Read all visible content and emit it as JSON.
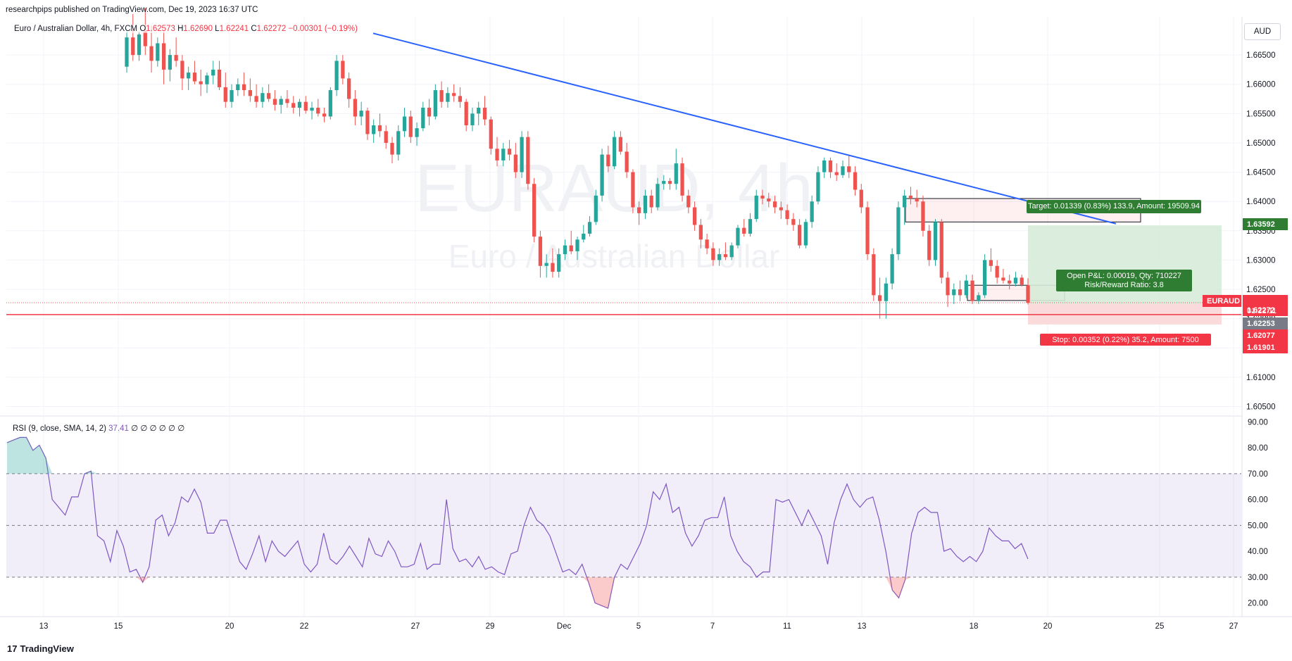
{
  "header": {
    "published_by": "researchpips published on TradingView.com, Dec 19, 2023 16:37 UTC"
  },
  "symbol_legend": {
    "name": "Euro / Australian Dollar, 4h, FXCM",
    "open_label": "O",
    "open": "1.62573",
    "high_label": "H",
    "high": "1.62690",
    "low_label": "L",
    "low": "1.62241",
    "close_label": "C",
    "close": "1.62272",
    "change": "−0.00301 (−0.19%)"
  },
  "currency_button": "AUD",
  "watermark": {
    "ticker": "EURAUD, 4h",
    "description": "Euro / Australian Dollar"
  },
  "rsi_legend": {
    "name": "RSI (9, close, SMA, 14, 2)",
    "value": "37.41",
    "extras": "∅ ∅ ∅ ∅ ∅ ∅"
  },
  "position": {
    "target_label": "Target: 0.01339 (0.83%) 133.9, Amount: 19509.94",
    "stop_label": "Stop: 0.00352 (0.22%) 35.2, Amount: 7500",
    "pnl_label": "Open P&L: 0.00019, Qty: 710227",
    "rr_label": "Risk/Reward Ratio: 3.8",
    "entry": 1.62253,
    "target": 1.63592,
    "stop": 1.61901
  },
  "price_labels": {
    "target": "1.63592",
    "current_symbol": "EURAUD",
    "current": "1.62272",
    "countdown": "01:22:11",
    "entry": "1.62253",
    "support": "1.62077",
    "stop": "1.61901"
  },
  "branding": {
    "logo_text": "TradingView",
    "logo_mark": "17"
  },
  "colors": {
    "up": "#26a69a",
    "down": "#ef5350",
    "trendline": "#2962ff",
    "support": "#f23645",
    "rsi": "#7e57c2",
    "target_fill": "#d7ebd8",
    "stop_fill": "#f9d6d6"
  },
  "chart_data": {
    "type": "candlestick",
    "price_axis": {
      "min": 1.6035,
      "max": 1.6715,
      "ticks": [
        1.665,
        1.66,
        1.655,
        1.65,
        1.645,
        1.64,
        1.635,
        1.63,
        1.625,
        1.62,
        1.615,
        1.61,
        1.605
      ]
    },
    "time_axis_labels": [
      "13",
      "15",
      "20",
      "22",
      "27",
      "29",
      "Dec",
      "5",
      "7",
      "11",
      "13",
      "18",
      "20",
      "25",
      "27"
    ],
    "support_level": 1.6207,
    "trendline": {
      "from": {
        "date": "Nov 15 00:00",
        "price": 1.6687
      },
      "to": {
        "date": "Dec 19 00:00",
        "price": 1.6362
      }
    },
    "highlight_zones": [
      {
        "from_date": "Dec 13",
        "to_date": "Dec 18",
        "high": 1.6405,
        "low": 1.6365
      },
      {
        "from_date": "Dec 18",
        "to_date": "Dec 20",
        "high": 1.6257,
        "low": 1.6231
      }
    ],
    "candles": [
      [
        1.663,
        1.669,
        1.662,
        1.668
      ],
      [
        1.668,
        1.672,
        1.664,
        1.665
      ],
      [
        1.665,
        1.669,
        1.664,
        1.6685
      ],
      [
        1.669,
        1.673,
        1.665,
        1.6665
      ],
      [
        1.6665,
        1.67,
        1.662,
        1.664
      ],
      [
        1.664,
        1.668,
        1.663,
        1.667
      ],
      [
        1.667,
        1.669,
        1.66,
        1.6625
      ],
      [
        1.6625,
        1.666,
        1.6605,
        1.665
      ],
      [
        1.665,
        1.668,
        1.663,
        1.664
      ],
      [
        1.664,
        1.665,
        1.659,
        1.661
      ],
      [
        1.661,
        1.663,
        1.659,
        1.662
      ],
      [
        1.662,
        1.664,
        1.66,
        1.6605
      ],
      [
        1.6605,
        1.6625,
        1.658,
        1.66
      ],
      [
        1.66,
        1.662,
        1.6585,
        1.6615
      ],
      [
        1.6615,
        1.664,
        1.66,
        1.6625
      ],
      [
        1.6625,
        1.664,
        1.659,
        1.6595
      ],
      [
        1.6595,
        1.662,
        1.656,
        1.657
      ],
      [
        1.657,
        1.66,
        1.656,
        1.659
      ],
      [
        1.659,
        1.661,
        1.658,
        1.66
      ],
      [
        1.66,
        1.662,
        1.658,
        1.659
      ],
      [
        1.659,
        1.661,
        1.657,
        1.658
      ],
      [
        1.658,
        1.66,
        1.656,
        1.657
      ],
      [
        1.657,
        1.6595,
        1.656,
        1.6585
      ],
      [
        1.6585,
        1.66,
        1.657,
        1.6575
      ],
      [
        1.6575,
        1.659,
        1.6555,
        1.6565
      ],
      [
        1.6565,
        1.658,
        1.655,
        1.6575
      ],
      [
        1.6575,
        1.659,
        1.656,
        1.6568
      ],
      [
        1.6568,
        1.658,
        1.655,
        1.656
      ],
      [
        1.656,
        1.6575,
        1.6545,
        1.657
      ],
      [
        1.657,
        1.658,
        1.655,
        1.6555
      ],
      [
        1.6555,
        1.657,
        1.654,
        1.656
      ],
      [
        1.656,
        1.6575,
        1.6545,
        1.655
      ],
      [
        1.655,
        1.656,
        1.6535,
        1.6545
      ],
      [
        1.6545,
        1.6595,
        1.654,
        1.659
      ],
      [
        1.659,
        1.665,
        1.658,
        1.664
      ],
      [
        1.664,
        1.665,
        1.66,
        1.661
      ],
      [
        1.661,
        1.662,
        1.656,
        1.6575
      ],
      [
        1.6575,
        1.659,
        1.653,
        1.6545
      ],
      [
        1.6545,
        1.657,
        1.653,
        1.6555
      ],
      [
        1.6555,
        1.656,
        1.6505,
        1.6515
      ],
      [
        1.6515,
        1.654,
        1.65,
        1.653
      ],
      [
        1.653,
        1.655,
        1.651,
        1.652
      ],
      [
        1.652,
        1.653,
        1.649,
        1.65
      ],
      [
        1.65,
        1.651,
        1.6465,
        1.648
      ],
      [
        1.648,
        1.653,
        1.647,
        1.652
      ],
      [
        1.652,
        1.656,
        1.651,
        1.6545
      ],
      [
        1.6545,
        1.6555,
        1.65,
        1.651
      ],
      [
        1.651,
        1.6535,
        1.6495,
        1.6525
      ],
      [
        1.6525,
        1.657,
        1.652,
        1.656
      ],
      [
        1.656,
        1.6575,
        1.653,
        1.6545
      ],
      [
        1.6545,
        1.66,
        1.654,
        1.659
      ],
      [
        1.659,
        1.6605,
        1.656,
        1.657
      ],
      [
        1.657,
        1.6595,
        1.656,
        1.6585
      ],
      [
        1.6585,
        1.66,
        1.657,
        1.658
      ],
      [
        1.658,
        1.6595,
        1.656,
        1.657
      ],
      [
        1.657,
        1.6575,
        1.652,
        1.653
      ],
      [
        1.653,
        1.656,
        1.652,
        1.655
      ],
      [
        1.655,
        1.657,
        1.653,
        1.656
      ],
      [
        1.656,
        1.658,
        1.653,
        1.654
      ],
      [
        1.654,
        1.6545,
        1.648,
        1.649
      ],
      [
        1.649,
        1.651,
        1.646,
        1.647
      ],
      [
        1.647,
        1.65,
        1.646,
        1.649
      ],
      [
        1.649,
        1.6505,
        1.647,
        1.648
      ],
      [
        1.648,
        1.65,
        1.644,
        1.645
      ],
      [
        1.645,
        1.652,
        1.644,
        1.651
      ],
      [
        1.651,
        1.652,
        1.642,
        1.643
      ],
      [
        1.643,
        1.644,
        1.633,
        1.634
      ],
      [
        1.634,
        1.635,
        1.627,
        1.629
      ],
      [
        1.629,
        1.631,
        1.627,
        1.6295
      ],
      [
        1.6295,
        1.632,
        1.627,
        1.628
      ],
      [
        1.628,
        1.632,
        1.627,
        1.631
      ],
      [
        1.631,
        1.6335,
        1.63,
        1.6325
      ],
      [
        1.6325,
        1.635,
        1.631,
        1.6315
      ],
      [
        1.6315,
        1.634,
        1.63,
        1.6335
      ],
      [
        1.6335,
        1.636,
        1.633,
        1.6345
      ],
      [
        1.6345,
        1.6375,
        1.634,
        1.6365
      ],
      [
        1.6365,
        1.642,
        1.636,
        1.641
      ],
      [
        1.641,
        1.649,
        1.64,
        1.648
      ],
      [
        1.648,
        1.6495,
        1.645,
        1.646
      ],
      [
        1.646,
        1.652,
        1.6455,
        1.651
      ],
      [
        1.651,
        1.652,
        1.648,
        1.6485
      ],
      [
        1.6485,
        1.65,
        1.644,
        1.645
      ],
      [
        1.645,
        1.6455,
        1.638,
        1.639
      ],
      [
        1.639,
        1.64,
        1.636,
        1.638
      ],
      [
        1.638,
        1.642,
        1.637,
        1.641
      ],
      [
        1.641,
        1.642,
        1.638,
        1.639
      ],
      [
        1.639,
        1.644,
        1.6385,
        1.643
      ],
      [
        1.643,
        1.6445,
        1.642,
        1.6435
      ],
      [
        1.6435,
        1.644,
        1.642,
        1.643
      ],
      [
        1.643,
        1.649,
        1.642,
        1.6465
      ],
      [
        1.6465,
        1.6475,
        1.64,
        1.641
      ],
      [
        1.641,
        1.642,
        1.638,
        1.639
      ],
      [
        1.639,
        1.64,
        1.635,
        1.636
      ],
      [
        1.636,
        1.637,
        1.632,
        1.6335
      ],
      [
        1.6335,
        1.6345,
        1.631,
        1.632
      ],
      [
        1.632,
        1.633,
        1.629,
        1.63
      ],
      [
        1.63,
        1.632,
        1.629,
        1.631
      ],
      [
        1.631,
        1.633,
        1.63,
        1.6305
      ],
      [
        1.6305,
        1.633,
        1.63,
        1.6325
      ],
      [
        1.6325,
        1.636,
        1.632,
        1.6355
      ],
      [
        1.6355,
        1.637,
        1.634,
        1.6345
      ],
      [
        1.6345,
        1.638,
        1.634,
        1.637
      ],
      [
        1.637,
        1.642,
        1.6365,
        1.641
      ],
      [
        1.641,
        1.642,
        1.6395,
        1.6405
      ],
      [
        1.6405,
        1.6415,
        1.639,
        1.64
      ],
      [
        1.64,
        1.641,
        1.638,
        1.639
      ],
      [
        1.639,
        1.64,
        1.637,
        1.6385
      ],
      [
        1.6385,
        1.6395,
        1.636,
        1.637
      ],
      [
        1.637,
        1.638,
        1.635,
        1.636
      ],
      [
        1.636,
        1.637,
        1.632,
        1.6325
      ],
      [
        1.6325,
        1.637,
        1.632,
        1.6365
      ],
      [
        1.6365,
        1.641,
        1.6355,
        1.64
      ],
      [
        1.64,
        1.646,
        1.6395,
        1.645
      ],
      [
        1.645,
        1.6475,
        1.644,
        1.647
      ],
      [
        1.647,
        1.6475,
        1.644,
        1.645
      ],
      [
        1.645,
        1.6465,
        1.6435,
        1.6445
      ],
      [
        1.6445,
        1.647,
        1.644,
        1.646
      ],
      [
        1.646,
        1.648,
        1.644,
        1.645
      ],
      [
        1.645,
        1.646,
        1.641,
        1.642
      ],
      [
        1.642,
        1.643,
        1.638,
        1.639
      ],
      [
        1.639,
        1.64,
        1.63,
        1.631
      ],
      [
        1.631,
        1.632,
        1.623,
        1.624
      ],
      [
        1.624,
        1.627,
        1.62,
        1.623
      ],
      [
        1.623,
        1.627,
        1.62,
        1.626
      ],
      [
        1.626,
        1.632,
        1.625,
        1.631
      ],
      [
        1.631,
        1.64,
        1.63,
        1.639
      ],
      [
        1.639,
        1.642,
        1.636,
        1.641
      ],
      [
        1.641,
        1.6425,
        1.6395,
        1.6405
      ],
      [
        1.6405,
        1.642,
        1.639,
        1.64
      ],
      [
        1.64,
        1.641,
        1.634,
        1.635
      ],
      [
        1.635,
        1.636,
        1.629,
        1.63
      ],
      [
        1.63,
        1.637,
        1.629,
        1.6365
      ],
      [
        1.6365,
        1.637,
        1.626,
        1.627
      ],
      [
        1.627,
        1.628,
        1.622,
        1.624
      ],
      [
        1.624,
        1.626,
        1.6225,
        1.625
      ],
      [
        1.625,
        1.6265,
        1.623,
        1.624
      ],
      [
        1.624,
        1.6275,
        1.6235,
        1.6265
      ],
      [
        1.6265,
        1.6275,
        1.6225,
        1.623
      ],
      [
        1.623,
        1.6245,
        1.6225,
        1.624
      ],
      [
        1.624,
        1.631,
        1.6235,
        1.63
      ],
      [
        1.63,
        1.632,
        1.628,
        1.629
      ],
      [
        1.629,
        1.63,
        1.626,
        1.627
      ],
      [
        1.627,
        1.6285,
        1.626,
        1.6265
      ],
      [
        1.6265,
        1.6275,
        1.625,
        1.626
      ],
      [
        1.626,
        1.628,
        1.6255,
        1.627
      ],
      [
        1.627,
        1.6275,
        1.6255,
        1.6258
      ],
      [
        1.6257,
        1.6269,
        1.6224,
        1.6227
      ]
    ],
    "rsi": {
      "min": 15,
      "max": 92,
      "ticks": [
        90,
        80,
        70,
        60,
        50,
        40,
        30,
        20
      ],
      "bands": {
        "upper": 70,
        "middle": 50,
        "lower": 30
      },
      "values": [
        82,
        83,
        84,
        84,
        79,
        81,
        76,
        60,
        57,
        54,
        61,
        61,
        70,
        71,
        46,
        44,
        36,
        48,
        42,
        32,
        33,
        28,
        34,
        52,
        54,
        46,
        51,
        61,
        59,
        64,
        59,
        47,
        47,
        52,
        52,
        44,
        36,
        33,
        39,
        46,
        36,
        44,
        40,
        38,
        41,
        44,
        35,
        32,
        35,
        47,
        37,
        35,
        38,
        42,
        38,
        34,
        45,
        39,
        38,
        44,
        40,
        34,
        34,
        35,
        43,
        33,
        35,
        35,
        60,
        41,
        36,
        37,
        34,
        38,
        33,
        34,
        32,
        31,
        39,
        40,
        50,
        57,
        52,
        50,
        46,
        39,
        32,
        33,
        31,
        35,
        28,
        20,
        19,
        18,
        30,
        35,
        33,
        38,
        43,
        50,
        63,
        60,
        66,
        55,
        57,
        47,
        42,
        46,
        52,
        53,
        53,
        61,
        46,
        40,
        36,
        34,
        30,
        32,
        32,
        60,
        59,
        60,
        55,
        50,
        56,
        51,
        46,
        35,
        51,
        60,
        66,
        60,
        57,
        60,
        61,
        52,
        40,
        25,
        22,
        29,
        47,
        55,
        57,
        55,
        55,
        40,
        41,
        38,
        36,
        38,
        36,
        40,
        49,
        46,
        44,
        44,
        41,
        43,
        37
      ]
    }
  }
}
